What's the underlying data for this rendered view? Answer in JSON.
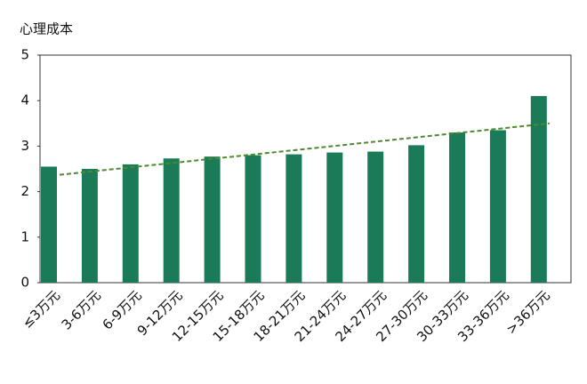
{
  "chart_data": {
    "type": "bar",
    "y_axis_title": "心理成本",
    "categories": [
      "≤3万元",
      "3-6万元",
      "6-9万元",
      "9-12万元",
      "12-15万元",
      "15-18万元",
      "18-21万元",
      "21-24万元",
      "24-27万元",
      "27-30万元",
      "30-33万元",
      "33-36万元",
      ">36万元"
    ],
    "values": [
      2.55,
      2.5,
      2.6,
      2.73,
      2.77,
      2.8,
      2.82,
      2.86,
      2.88,
      3.02,
      3.3,
      3.35,
      4.1
    ],
    "color": "#1b7a57",
    "trend_line": {
      "values": [
        2.37,
        3.5
      ],
      "color": "#4d8a2e",
      "dashed": true
    },
    "ylim": [
      0,
      5
    ],
    "yticks": [
      0,
      1,
      2,
      3,
      4,
      5
    ],
    "grid": false
  }
}
